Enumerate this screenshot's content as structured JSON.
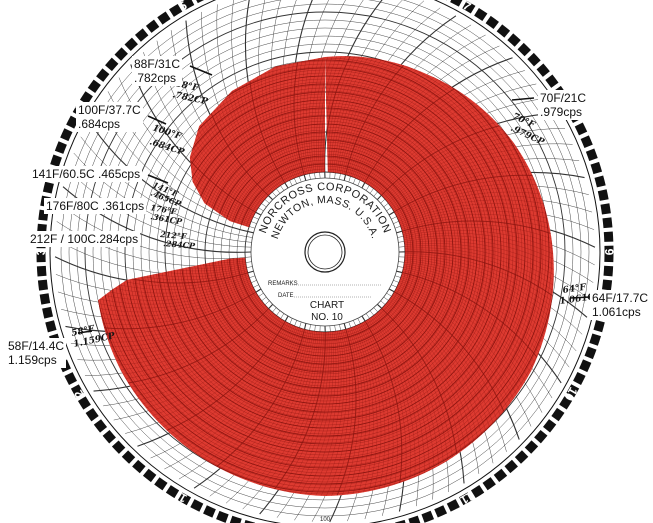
{
  "chart_data": {
    "type": "other",
    "title": "",
    "center": {
      "company": "NORCROSS CORPORATION",
      "location": "NEWTON, MASS. U.S.A.",
      "remarks_label": "REMARKS",
      "date_label": "DATE",
      "chart_label": "CHART",
      "chart_number": "NO. 10"
    },
    "hour_labels": [
      "1",
      "2",
      "3",
      "4",
      "5",
      "6",
      "7",
      "8",
      "9",
      "10",
      "11",
      "12"
    ],
    "bottom_label": "100",
    "annotations": [
      {
        "temp": "88F/31C",
        "visc": ".782cps",
        "handwritten_temp": "88°F",
        "handwritten_visc": ".782CP"
      },
      {
        "temp": "100F/37.7C",
        "visc": ".684cps",
        "handwritten_temp": "100°F",
        "handwritten_visc": ".684CP"
      },
      {
        "temp": "141F/60.5C .465cps",
        "handwritten_temp": "141°F",
        "handwritten_visc": ".465CP"
      },
      {
        "temp": "176F/80C .361cps",
        "handwritten_temp": "176°F",
        "handwritten_visc": ".361CP"
      },
      {
        "temp": "212F / 100C.284cps",
        "handwritten_temp": "212°F",
        "handwritten_visc": ".284CP"
      },
      {
        "temp": "70F/21C",
        "visc": ".979cps",
        "handwritten_temp": "70°F",
        "handwritten_visc": ".979CP"
      },
      {
        "temp": "64F/17.7C",
        "visc": "1.061cps",
        "handwritten_temp": "64°F",
        "handwritten_visc": "1.061CP"
      },
      {
        "temp": "58F/14.4C",
        "visc": "1.159cps",
        "handwritten_temp": "58°F",
        "handwritten_visc": "1.159CP"
      }
    ],
    "colors": {
      "trace_fill": "#dd3a30",
      "trace_grid": "#8c1510",
      "grid": "#333333",
      "paper": "#ffffff",
      "outer_band": "#111111"
    }
  }
}
